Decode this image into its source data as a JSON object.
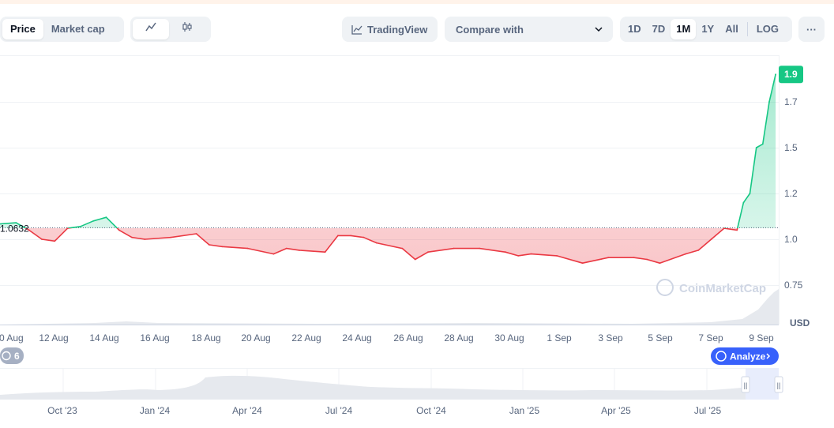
{
  "toolbar": {
    "metric_tabs": [
      "Price",
      "Market cap"
    ],
    "active_metric": "Price",
    "tradingview_label": "TradingView",
    "compare_label": "Compare with",
    "ranges": [
      "1D",
      "7D",
      "1M",
      "1Y",
      "All"
    ],
    "active_range": "1M",
    "log_label": "LOG",
    "more_label": "···"
  },
  "chart_data": {
    "type": "line",
    "title": "",
    "xlabel": "",
    "ylabel": "USD",
    "x_ticks": [
      "0 Aug",
      "12 Aug",
      "14 Aug",
      "16 Aug",
      "18 Aug",
      "20 Aug",
      "22 Aug",
      "24 Aug",
      "26 Aug",
      "28 Aug",
      "30 Aug",
      "1 Sep",
      "3 Sep",
      "5 Sep",
      "7 Sep",
      "9 Sep"
    ],
    "y_ticks": [
      "0.75",
      "1.0",
      "1.2",
      "1.5",
      "1.7"
    ],
    "ylim": [
      0.6,
      2.0
    ],
    "baseline_value": 1.0632,
    "baseline_label": "1.0632",
    "current_price_label": "1.9",
    "watermark": "CoinMarketCap",
    "events_count": "6",
    "analyze_label": "Analyze",
    "up_color": "#16c784",
    "down_color": "#ea3943",
    "series": [
      {
        "points": [
          [
            "10 Aug",
            1.08
          ],
          [
            "11 Aug",
            1.09
          ],
          [
            "11 Aug 12h",
            1.05
          ],
          [
            "12 Aug",
            1.0
          ],
          [
            "12 Aug 12h",
            0.99
          ],
          [
            "13 Aug",
            1.06
          ],
          [
            "13 Aug 12h",
            1.07
          ],
          [
            "14 Aug",
            1.1
          ],
          [
            "14 Aug 12h",
            1.12
          ],
          [
            "15 Aug",
            1.05
          ],
          [
            "15 Aug 12h",
            1.01
          ],
          [
            "16 Aug",
            1.0
          ],
          [
            "17 Aug",
            1.01
          ],
          [
            "18 Aug",
            1.03
          ],
          [
            "18 Aug 12h",
            0.97
          ],
          [
            "19 Aug",
            0.96
          ],
          [
            "20 Aug",
            0.95
          ],
          [
            "21 Aug",
            0.92
          ],
          [
            "21 Aug 12h",
            0.95
          ],
          [
            "22 Aug",
            0.94
          ],
          [
            "23 Aug",
            0.93
          ],
          [
            "23 Aug 12h",
            1.02
          ],
          [
            "24 Aug",
            1.02
          ],
          [
            "24 Aug 12h",
            1.01
          ],
          [
            "25 Aug",
            0.98
          ],
          [
            "26 Aug",
            0.95
          ],
          [
            "26 Aug 12h",
            0.89
          ],
          [
            "27 Aug",
            0.93
          ],
          [
            "28 Aug",
            0.95
          ],
          [
            "29 Aug",
            0.95
          ],
          [
            "30 Aug",
            0.93
          ],
          [
            "30 Aug 12h",
            0.91
          ],
          [
            "31 Aug",
            0.92
          ],
          [
            "1 Sep",
            0.91
          ],
          [
            "2 Sep",
            0.87
          ],
          [
            "3 Sep",
            0.9
          ],
          [
            "4 Sep",
            0.9
          ],
          [
            "4 Sep 12h",
            0.89
          ],
          [
            "5 Sep",
            0.87
          ],
          [
            "6 Sep",
            0.92
          ],
          [
            "6 Sep 12h",
            0.94
          ],
          [
            "7 Sep",
            1.0
          ],
          [
            "7 Sep 12h",
            1.06
          ],
          [
            "8 Sep",
            1.05
          ],
          [
            "8 Sep 6h",
            1.2
          ],
          [
            "8 Sep 12h",
            1.25
          ],
          [
            "8 Sep 18h",
            1.5
          ],
          [
            "9 Sep",
            1.52
          ],
          [
            "9 Sep 6h",
            1.75
          ],
          [
            "9 Sep 12h",
            1.9
          ]
        ]
      }
    ]
  },
  "navigator": {
    "labels": [
      "Oct '23",
      "Jan '24",
      "Apr '24",
      "Jul '24",
      "Oct '24",
      "Jan '25",
      "Apr '25",
      "Jul '25"
    ],
    "handle_glyph": "||"
  }
}
